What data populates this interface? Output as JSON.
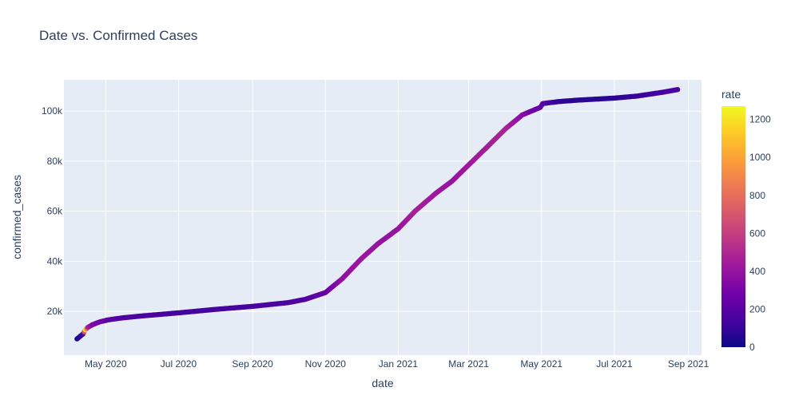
{
  "chart_data": {
    "type": "scatter",
    "title": "Date vs. Confirmed Cases",
    "xlabel": "date",
    "ylabel": "confirmed_cases",
    "x_range": [
      "2020-03-27",
      "2021-09-12"
    ],
    "y_range": [
      2500,
      112500
    ],
    "x_ticks": [
      {
        "date": "2020-05-01",
        "label": "May 2020"
      },
      {
        "date": "2020-07-01",
        "label": "Jul 2020"
      },
      {
        "date": "2020-09-01",
        "label": "Sep 2020"
      },
      {
        "date": "2020-11-01",
        "label": "Nov 2020"
      },
      {
        "date": "2021-01-01",
        "label": "Jan 2021"
      },
      {
        "date": "2021-03-01",
        "label": "Mar 2021"
      },
      {
        "date": "2021-05-01",
        "label": "May 2021"
      },
      {
        "date": "2021-07-01",
        "label": "Jul 2021"
      },
      {
        "date": "2021-09-01",
        "label": "Sep 2021"
      }
    ],
    "y_ticks": [
      {
        "value": 20000,
        "label": "20k"
      },
      {
        "value": 40000,
        "label": "40k"
      },
      {
        "value": 60000,
        "label": "60k"
      },
      {
        "value": 80000,
        "label": "80k"
      },
      {
        "value": 100000,
        "label": "100k"
      }
    ],
    "grid": true,
    "colorbar": {
      "title": "rate",
      "min": 0,
      "max": 1270,
      "ticks": [
        0,
        200,
        400,
        600,
        800,
        1000,
        1200
      ],
      "colorscale": [
        "#0d0887",
        "#46039f",
        "#7201a8",
        "#9c179e",
        "#bd3786",
        "#d8576b",
        "#ed7953",
        "#fb9f3a",
        "#fdca26",
        "#f0f921"
      ]
    },
    "series": [
      {
        "points": [
          {
            "x": "2020-04-07",
            "y": 9000,
            "rate": 40
          },
          {
            "x": "2020-04-12",
            "y": 11000,
            "rate": 120
          },
          {
            "x": "2020-04-14",
            "y": 12600,
            "rate": 1200
          },
          {
            "x": "2020-04-16",
            "y": 13600,
            "rate": 480
          },
          {
            "x": "2020-04-20",
            "y": 14700,
            "rate": 330
          },
          {
            "x": "2020-04-26",
            "y": 15800,
            "rate": 290
          },
          {
            "x": "2020-05-03",
            "y": 16600,
            "rate": 220
          },
          {
            "x": "2020-05-15",
            "y": 17400,
            "rate": 180
          },
          {
            "x": "2020-06-01",
            "y": 18200,
            "rate": 160
          },
          {
            "x": "2020-07-01",
            "y": 19400,
            "rate": 140
          },
          {
            "x": "2020-08-01",
            "y": 20800,
            "rate": 140
          },
          {
            "x": "2020-09-01",
            "y": 22000,
            "rate": 150
          },
          {
            "x": "2020-10-01",
            "y": 23500,
            "rate": 160
          },
          {
            "x": "2020-10-15",
            "y": 24800,
            "rate": 180
          },
          {
            "x": "2020-11-01",
            "y": 27500,
            "rate": 250
          },
          {
            "x": "2020-11-15",
            "y": 33000,
            "rate": 380
          },
          {
            "x": "2020-12-01",
            "y": 41000,
            "rate": 420
          },
          {
            "x": "2020-12-15",
            "y": 47000,
            "rate": 400
          },
          {
            "x": "2021-01-01",
            "y": 53000,
            "rate": 400
          },
          {
            "x": "2021-01-15",
            "y": 60000,
            "rate": 470
          },
          {
            "x": "2021-02-01",
            "y": 67000,
            "rate": 430
          },
          {
            "x": "2021-02-15",
            "y": 72000,
            "rate": 400
          },
          {
            "x": "2021-03-01",
            "y": 78500,
            "rate": 430
          },
          {
            "x": "2021-03-15",
            "y": 85000,
            "rate": 450
          },
          {
            "x": "2021-04-01",
            "y": 93000,
            "rate": 480
          },
          {
            "x": "2021-04-15",
            "y": 98500,
            "rate": 360
          },
          {
            "x": "2021-04-30",
            "y": 101500,
            "rate": 230
          },
          {
            "x": "2021-05-02",
            "y": 103000,
            "rate": 200
          },
          {
            "x": "2021-05-15",
            "y": 103800,
            "rate": 90
          },
          {
            "x": "2021-06-01",
            "y": 104400,
            "rate": 70
          },
          {
            "x": "2021-07-01",
            "y": 105200,
            "rate": 70
          },
          {
            "x": "2021-07-20",
            "y": 106000,
            "rate": 110
          },
          {
            "x": "2021-08-10",
            "y": 107500,
            "rate": 140
          },
          {
            "x": "2021-08-23",
            "y": 108600,
            "rate": 170
          }
        ]
      }
    ]
  }
}
